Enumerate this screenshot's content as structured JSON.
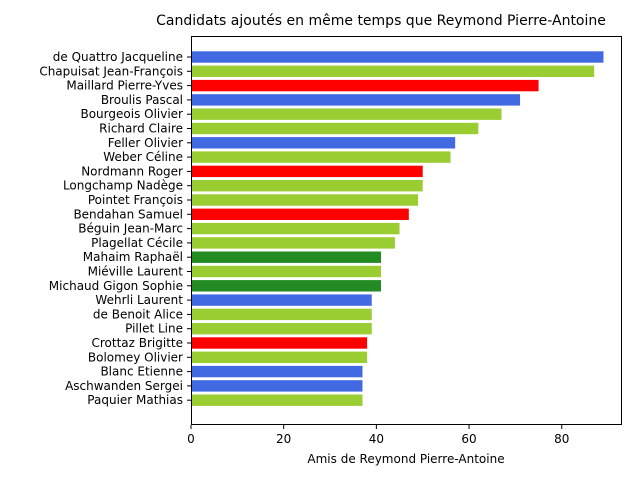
{
  "chart_data": {
    "type": "bar",
    "orientation": "horizontal",
    "title": "Candidats ajoutés en même temps que Reymond Pierre-Antoine",
    "xlabel": "Amis de Reymond Pierre-Antoine",
    "ylabel": "",
    "xlim": [
      0,
      93
    ],
    "xticks": [
      0,
      20,
      40,
      60,
      80
    ],
    "grid": false,
    "categories": [
      "de Quattro Jacqueline",
      "Chapuisat Jean-François",
      "Maillard Pierre-Yves",
      "Broulis Pascal",
      "Bourgeois Olivier",
      "Richard Claire",
      "Feller Olivier",
      "Weber Céline",
      "Nordmann Roger",
      "Longchamp Nadège",
      "Pointet François",
      "Bendahan Samuel",
      "Béguin Jean-Marc",
      "Plagellat Cécile",
      "Mahaim Raphaël",
      "Miéville Laurent",
      "Michaud Gigon Sophie",
      "Wehrli Laurent",
      "de Benoit Alice",
      "Pillet Line",
      "Crottaz Brigitte",
      "Bolomey Olivier",
      "Blanc Etienne",
      "Aschwanden Sergei",
      "Paquier Mathias"
    ],
    "values": [
      89,
      87,
      75,
      71,
      67,
      62,
      57,
      56,
      50,
      50,
      49,
      47,
      45,
      44,
      41,
      41,
      41,
      39,
      39,
      39,
      38,
      38,
      37,
      37,
      37
    ],
    "colors": [
      "#4169e1",
      "#9acd32",
      "#ff0000",
      "#4169e1",
      "#9acd32",
      "#9acd32",
      "#4169e1",
      "#9acd32",
      "#ff0000",
      "#9acd32",
      "#9acd32",
      "#ff0000",
      "#9acd32",
      "#9acd32",
      "#228b22",
      "#9acd32",
      "#228b22",
      "#4169e1",
      "#9acd32",
      "#9acd32",
      "#ff0000",
      "#9acd32",
      "#4169e1",
      "#4169e1",
      "#9acd32"
    ]
  }
}
